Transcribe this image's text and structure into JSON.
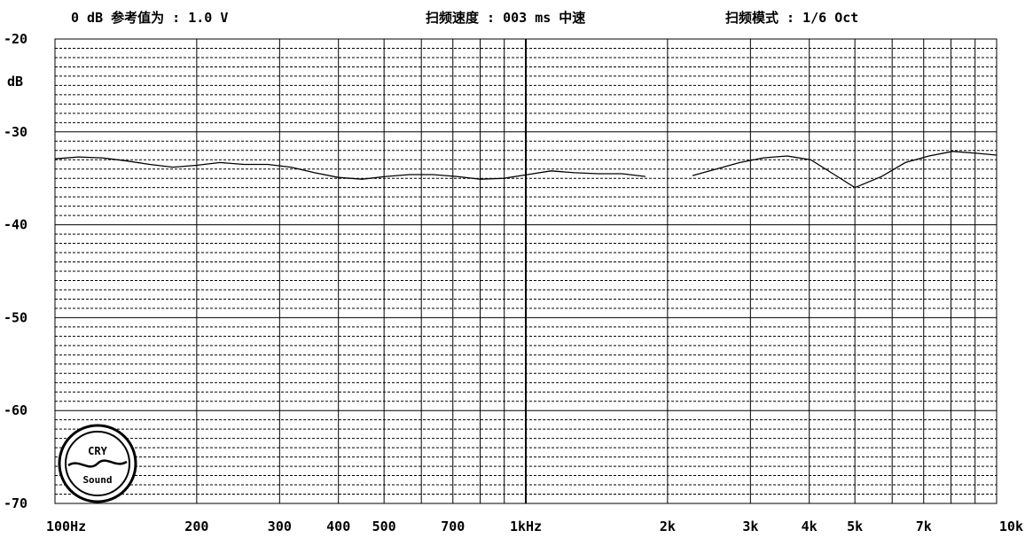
{
  "header": {
    "ref_level": "0 dB 参考值为 : 1.0 V",
    "sweep_speed": "扫频速度 : 003 ms 中速",
    "sweep_mode": "扫频模式 : 1/6 Oct"
  },
  "logo": {
    "top_text": "CRY",
    "bottom_text": "Sound"
  },
  "chart_data": {
    "type": "line",
    "title": "",
    "xlabel": "",
    "ylabel": "dB",
    "x_scale": "log",
    "xlim": [
      100,
      10000
    ],
    "ylim": [
      -70,
      -20
    ],
    "grid": true,
    "y_ticks": [
      "-20",
      "-30",
      "-40",
      "-50",
      "-60",
      "-70"
    ],
    "x_ticks": [
      {
        "value": 100,
        "label": "100Hz"
      },
      {
        "value": 200,
        "label": "200"
      },
      {
        "value": 300,
        "label": "300"
      },
      {
        "value": 400,
        "label": "400"
      },
      {
        "value": 500,
        "label": "500"
      },
      {
        "value": 700,
        "label": "700"
      },
      {
        "value": 1000,
        "label": "1kHz"
      },
      {
        "value": 2000,
        "label": "2k"
      },
      {
        "value": 3000,
        "label": "3k"
      },
      {
        "value": 4000,
        "label": "4k"
      },
      {
        "value": 5000,
        "label": "5k"
      },
      {
        "value": 7000,
        "label": "7k"
      },
      {
        "value": 10000,
        "label": "10k"
      }
    ],
    "series": [
      {
        "segments": [
          [
            [
              100,
              -32.9
            ],
            [
              112,
              -32.7
            ],
            [
              126,
              -32.8
            ],
            [
              141,
              -33.1
            ],
            [
              159,
              -33.5
            ],
            [
              178,
              -33.8
            ],
            [
              200,
              -33.6
            ],
            [
              224,
              -33.3
            ],
            [
              252,
              -33.5
            ],
            [
              283,
              -33.5
            ],
            [
              317,
              -33.8
            ],
            [
              356,
              -34.4
            ],
            [
              400,
              -34.9
            ],
            [
              449,
              -35.1
            ],
            [
              504,
              -34.8
            ],
            [
              566,
              -34.6
            ],
            [
              635,
              -34.6
            ],
            [
              713,
              -34.8
            ],
            [
              800,
              -35.1
            ],
            [
              898,
              -35.0
            ],
            [
              1008,
              -34.6
            ],
            [
              1131,
              -34.2
            ],
            [
              1270,
              -34.4
            ],
            [
              1425,
              -34.5
            ],
            [
              1600,
              -34.5
            ],
            [
              1796,
              -34.8
            ]
          ],
          [
            [
              2260,
              -34.7
            ],
            [
              2537,
              -34.0
            ],
            [
              2848,
              -33.3
            ],
            [
              3197,
              -32.8
            ],
            [
              3589,
              -32.6
            ],
            [
              4028,
              -33.0
            ],
            [
              4522,
              -34.6
            ],
            [
              5000,
              -36.0
            ],
            [
              5700,
              -34.8
            ],
            [
              6399,
              -33.3
            ],
            [
              7183,
              -32.6
            ],
            [
              8063,
              -32.1
            ],
            [
              9051,
              -32.3
            ],
            [
              10000,
              -32.5
            ]
          ]
        ]
      }
    ]
  }
}
